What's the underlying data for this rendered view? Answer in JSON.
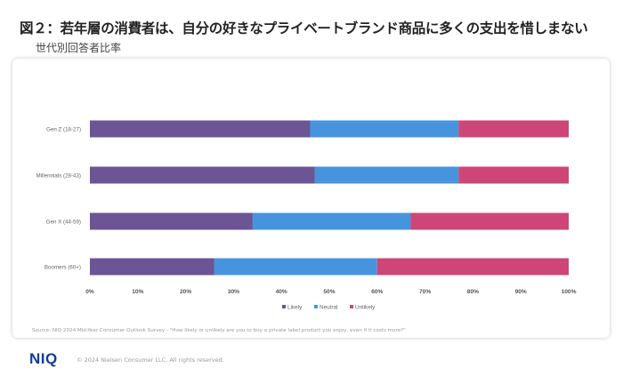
{
  "header": {
    "title": "図２：若年層の消費者は、自分の好きなプライベートブランド商品に多くの支出を惜しまない",
    "subtitle": "世代別回答者比率"
  },
  "chart_data": {
    "type": "bar",
    "orientation": "horizontal",
    "stacked": true,
    "categories": [
      "Gen Z (18-27)",
      "Millennials (28-43)",
      "Gen X (44-59)",
      "Boomers (60+)"
    ],
    "series": [
      {
        "name": "Likely",
        "values": [
          46,
          47,
          34,
          26
        ],
        "color": "#6b5595"
      },
      {
        "name": "Neutral",
        "values": [
          31,
          30,
          33,
          34
        ],
        "color": "#4694de"
      },
      {
        "name": "Unlikely",
        "values": [
          23,
          23,
          33,
          40
        ],
        "color": "#cd4677"
      }
    ],
    "xticks": [
      "0%",
      "10%",
      "20%",
      "30%",
      "40%",
      "50%",
      "60%",
      "70%",
      "80%",
      "90%",
      "100%"
    ],
    "xlim": [
      0,
      100
    ],
    "grid": false,
    "legend": "bottom"
  },
  "source": "Source: NIQ 2024 Mid-Year Consumer Outlook Survey - \"How likely or unlikely are you to buy a private label product you enjoy, even if it costs more?\"",
  "footer": {
    "logo": "NIQ",
    "copyright": "© 2024 Nielsen Consumer LLC. All rights reserved."
  }
}
